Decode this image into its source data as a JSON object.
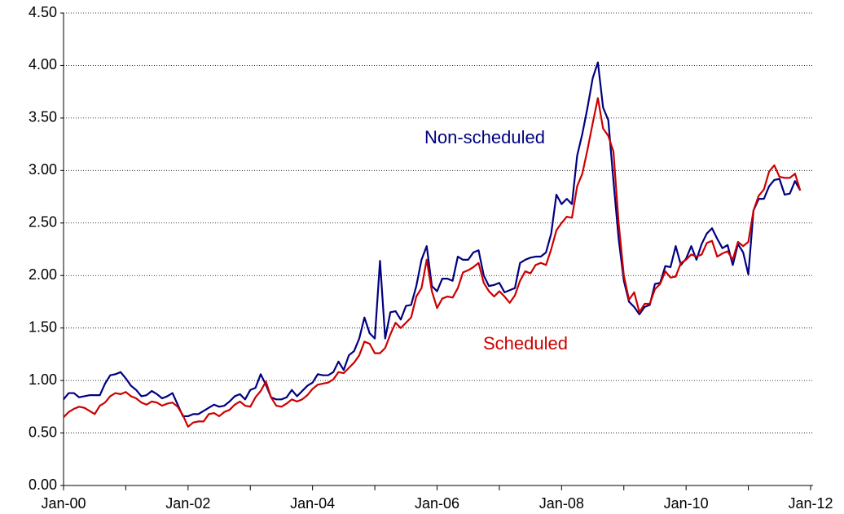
{
  "chart_data": {
    "type": "line",
    "categories": [
      "Jan-00",
      null,
      null,
      null,
      null,
      null,
      null,
      null,
      null,
      null,
      null,
      null,
      null,
      null,
      null,
      null,
      null,
      null,
      null,
      null,
      null,
      null,
      null,
      null,
      "Jan-02",
      null,
      null,
      null,
      null,
      null,
      null,
      null,
      null,
      null,
      null,
      null,
      null,
      null,
      null,
      null,
      null,
      null,
      null,
      null,
      null,
      null,
      null,
      null,
      "Jan-04",
      null,
      null,
      null,
      null,
      null,
      null,
      null,
      null,
      null,
      null,
      null,
      null,
      null,
      null,
      null,
      null,
      null,
      null,
      null,
      null,
      null,
      null,
      null,
      "Jan-06",
      null,
      null,
      null,
      null,
      null,
      null,
      null,
      null,
      null,
      null,
      null,
      null,
      null,
      null,
      null,
      null,
      null,
      null,
      null,
      null,
      null,
      null,
      null,
      "Jan-08",
      null,
      null,
      null,
      null,
      null,
      null,
      null,
      null,
      null,
      null,
      null,
      null,
      null,
      null,
      null,
      null,
      null,
      null,
      null,
      null,
      null,
      null,
      null,
      "Jan-10",
      null,
      null,
      null,
      null,
      null,
      null,
      null,
      null,
      null,
      null,
      null,
      null,
      null,
      null,
      null,
      null,
      null,
      null,
      null,
      null,
      null,
      null,
      null,
      "Jan-12"
    ],
    "series": [
      {
        "name": "Non-scheduled",
        "color": "#000080",
        "values": [
          0.82,
          0.88,
          0.88,
          0.84,
          0.85,
          0.86,
          0.86,
          0.86,
          0.97,
          1.05,
          1.06,
          1.08,
          1.02,
          0.95,
          0.91,
          0.85,
          0.86,
          0.9,
          0.87,
          0.83,
          0.85,
          0.88,
          0.77,
          0.66,
          0.66,
          0.68,
          0.68,
          0.71,
          0.74,
          0.77,
          0.75,
          0.76,
          0.8,
          0.85,
          0.87,
          0.82,
          0.91,
          0.93,
          1.06,
          0.96,
          0.84,
          0.82,
          0.82,
          0.84,
          0.91,
          0.85,
          0.9,
          0.95,
          0.98,
          1.06,
          1.05,
          1.05,
          1.08,
          1.18,
          1.1,
          1.24,
          1.28,
          1.4,
          1.6,
          1.45,
          1.4,
          2.14,
          1.4,
          1.65,
          1.66,
          1.58,
          1.71,
          1.72,
          1.9,
          2.15,
          2.28,
          1.9,
          1.85,
          1.97,
          1.97,
          1.95,
          2.18,
          2.15,
          2.15,
          2.22,
          2.24,
          2.0,
          1.9,
          1.91,
          1.93,
          1.84,
          1.86,
          1.88,
          2.12,
          2.15,
          2.17,
          2.18,
          2.18,
          2.22,
          2.4,
          2.77,
          2.68,
          2.73,
          2.68,
          3.14,
          3.35,
          3.6,
          3.88,
          4.03,
          3.6,
          3.48,
          2.9,
          2.35,
          1.95,
          1.75,
          1.7,
          1.63,
          1.7,
          1.72,
          1.92,
          1.93,
          2.09,
          2.08,
          2.28,
          2.1,
          2.16,
          2.28,
          2.15,
          2.3,
          2.4,
          2.45,
          2.35,
          2.26,
          2.29,
          2.1,
          2.3,
          2.22,
          2.01,
          2.62,
          2.73,
          2.73,
          2.85,
          2.91,
          2.92,
          2.77,
          2.78,
          2.9,
          2.81,
          null,
          null
        ]
      },
      {
        "name": "Scheduled",
        "color": "#cc0000",
        "values": [
          0.65,
          0.7,
          0.73,
          0.75,
          0.74,
          0.71,
          0.68,
          0.76,
          0.79,
          0.85,
          0.88,
          0.87,
          0.89,
          0.85,
          0.83,
          0.79,
          0.77,
          0.8,
          0.79,
          0.76,
          0.78,
          0.79,
          0.75,
          0.67,
          0.56,
          0.6,
          0.61,
          0.61,
          0.68,
          0.69,
          0.66,
          0.7,
          0.72,
          0.77,
          0.8,
          0.76,
          0.75,
          0.84,
          0.9,
          0.99,
          0.84,
          0.76,
          0.75,
          0.78,
          0.82,
          0.8,
          0.82,
          0.86,
          0.92,
          0.96,
          0.97,
          0.98,
          1.01,
          1.08,
          1.07,
          1.12,
          1.17,
          1.24,
          1.37,
          1.35,
          1.26,
          1.26,
          1.31,
          1.44,
          1.55,
          1.5,
          1.55,
          1.6,
          1.8,
          1.88,
          2.15,
          1.85,
          1.69,
          1.78,
          1.8,
          1.79,
          1.88,
          2.03,
          2.05,
          2.08,
          2.12,
          1.93,
          1.85,
          1.8,
          1.85,
          1.8,
          1.74,
          1.81,
          1.95,
          2.04,
          2.02,
          2.1,
          2.12,
          2.1,
          2.25,
          2.43,
          2.5,
          2.56,
          2.55,
          2.85,
          2.97,
          3.2,
          3.45,
          3.69,
          3.4,
          3.33,
          3.18,
          2.5,
          2.0,
          1.77,
          1.84,
          1.65,
          1.73,
          1.73,
          1.87,
          1.92,
          2.04,
          1.98,
          1.99,
          2.12,
          2.15,
          2.2,
          2.18,
          2.2,
          2.31,
          2.33,
          2.18,
          2.21,
          2.23,
          2.15,
          2.32,
          2.28,
          2.32,
          2.62,
          2.76,
          2.82,
          2.99,
          3.05,
          2.94,
          2.93,
          2.93,
          2.97,
          2.81,
          null,
          null
        ]
      }
    ],
    "ylim": [
      0,
      4.5
    ],
    "yticks": [
      {
        "value": 0,
        "label": "0.00"
      },
      {
        "value": 0.5,
        "label": "0.50"
      },
      {
        "value": 1,
        "label": "1.00"
      },
      {
        "value": 1.5,
        "label": "1.50"
      },
      {
        "value": 2,
        "label": "2.00"
      },
      {
        "value": 2.5,
        "label": "2.50"
      },
      {
        "value": 3,
        "label": "3.00"
      },
      {
        "value": 3.5,
        "label": "3.50"
      },
      {
        "value": 4,
        "label": "4.00"
      },
      {
        "value": 4.5,
        "label": "4.50"
      }
    ],
    "grid": true
  }
}
